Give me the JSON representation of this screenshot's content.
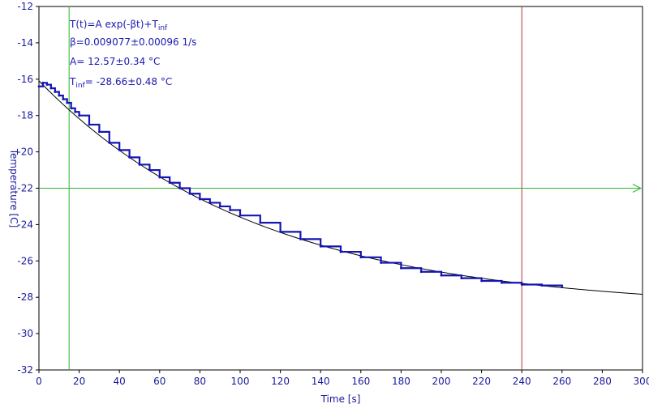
{
  "chart_data": {
    "type": "scatter",
    "title": "",
    "xlabel": "Time [s]",
    "ylabel": "Temperature [C]",
    "xlim": [
      0,
      300
    ],
    "ylim": [
      -32,
      -12
    ],
    "xticks": [
      0,
      20,
      40,
      60,
      80,
      100,
      120,
      140,
      160,
      180,
      200,
      220,
      240,
      260,
      280,
      300
    ],
    "yticks": [
      -12,
      -14,
      -16,
      -18,
      -20,
      -22,
      -24,
      -26,
      -28,
      -30,
      -32
    ],
    "grid": false,
    "fit": {
      "model": "exponential",
      "A": 12.57,
      "beta": 0.009077,
      "T_inf": -28.66,
      "x_range": [
        0,
        300
      ]
    },
    "series": [
      {
        "x": [
          0,
          2,
          4,
          6,
          8,
          10,
          12,
          14,
          16,
          18,
          20,
          25,
          30,
          35,
          40,
          45,
          50,
          55,
          60,
          65,
          70,
          75,
          80,
          85,
          90,
          95,
          100,
          110,
          120,
          130,
          140,
          150,
          160,
          170,
          180,
          190,
          200,
          210,
          220,
          230,
          240,
          250,
          260
        ],
        "y": [
          -16.4,
          -16.2,
          -16.3,
          -16.5,
          -16.7,
          -16.9,
          -17.1,
          -17.3,
          -17.6,
          -17.8,
          -18.0,
          -18.5,
          -18.9,
          -19.5,
          -19.9,
          -20.3,
          -20.7,
          -21.0,
          -21.4,
          -21.7,
          -22.0,
          -22.3,
          -22.6,
          -22.8,
          -23.0,
          -23.2,
          -23.5,
          -23.9,
          -24.4,
          -24.8,
          -25.2,
          -25.5,
          -25.8,
          -26.1,
          -26.4,
          -26.6,
          -26.8,
          -26.95,
          -27.1,
          -27.2,
          -27.3,
          -27.35,
          -27.4
        ],
        "color": "#1414b4"
      }
    ],
    "annotations": [
      {
        "base": "T(t)=A exp(-βt)+T",
        "sub": "inf"
      },
      {
        "text": "β=0.009077±0.00096 1/s"
      },
      {
        "text": "A= 12.57±0.34 °C"
      },
      {
        "prefix": "T",
        "sub": "inf",
        "text": "= -28.66±0.48 °C"
      }
    ],
    "markers": {
      "vertical_green_x": 15,
      "vertical_red_x": 240,
      "horizontal_green_y": -22
    },
    "colors": {
      "data": "#1414b4",
      "fit": "#000000",
      "cursor_green": "#2ab52a",
      "cursor_red": "#c03030",
      "axis_text": "#1a1a9a"
    }
  }
}
